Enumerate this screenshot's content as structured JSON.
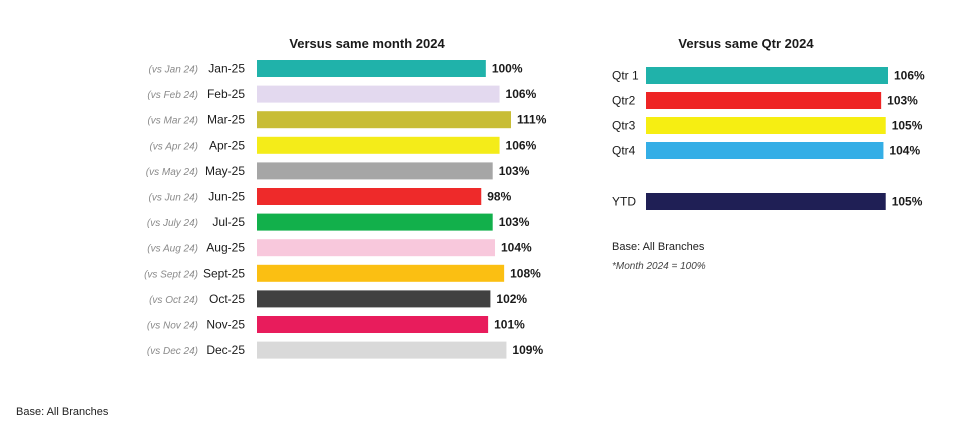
{
  "chart_data": [
    {
      "type": "bar",
      "orientation": "horizontal",
      "title": "Versus same month 2024",
      "categories": [
        "Jan-25",
        "Feb-25",
        "Mar-25",
        "Apr-25",
        "May-25",
        "Jun-25",
        "Jul-25",
        "Aug-25",
        "Sept-25",
        "Oct-25",
        "Nov-25",
        "Dec-25"
      ],
      "comparisons": [
        "(vs Jan 24)",
        "(vs Feb 24)",
        "(vs Mar 24)",
        "(vs Apr 24)",
        "(vs May 24)",
        "(vs Jun 24)",
        "(vs July 24)",
        "(vs Aug 24)",
        "(vs Sept 24)",
        "(vs Oct 24)",
        "(vs Nov 24)",
        "(vs Dec 24)"
      ],
      "values": [
        100,
        106,
        111,
        106,
        103,
        98,
        103,
        104,
        108,
        102,
        101,
        109
      ],
      "value_labels": [
        "100%",
        "106%",
        "111%",
        "106%",
        "103%",
        "98%",
        "103%",
        "104%",
        "108%",
        "102%",
        "101%",
        "109%"
      ],
      "colors": [
        "#20b2aa",
        "#e3d9ef",
        "#c8bd36",
        "#f4ec19",
        "#a6a6a6",
        "#ee2a2a",
        "#12b04b",
        "#f8c8dc",
        "#fbbf12",
        "#414141",
        "#e81c5c",
        "#d9d9d9"
      ],
      "xlim": [
        0,
        111
      ],
      "grid": false
    },
    {
      "type": "bar",
      "orientation": "horizontal",
      "title": "Versus same Qtr 2024",
      "categories": [
        "Qtr 1",
        "Qtr2",
        "Qtr3",
        "Qtr4",
        "YTD"
      ],
      "values": [
        106,
        103,
        105,
        104,
        105
      ],
      "value_labels": [
        "106%",
        "103%",
        "105%",
        "104%",
        "105%"
      ],
      "colors": [
        "#20b2aa",
        "#ee2424",
        "#f6ee12",
        "#34aee6",
        "#1f1f55"
      ],
      "xlim": [
        0,
        106
      ],
      "grid": false,
      "notes": [
        "Base:  All Branches",
        "*Month 2024 = 100%"
      ]
    }
  ],
  "footer": {
    "base": "Base:  All Branches"
  }
}
